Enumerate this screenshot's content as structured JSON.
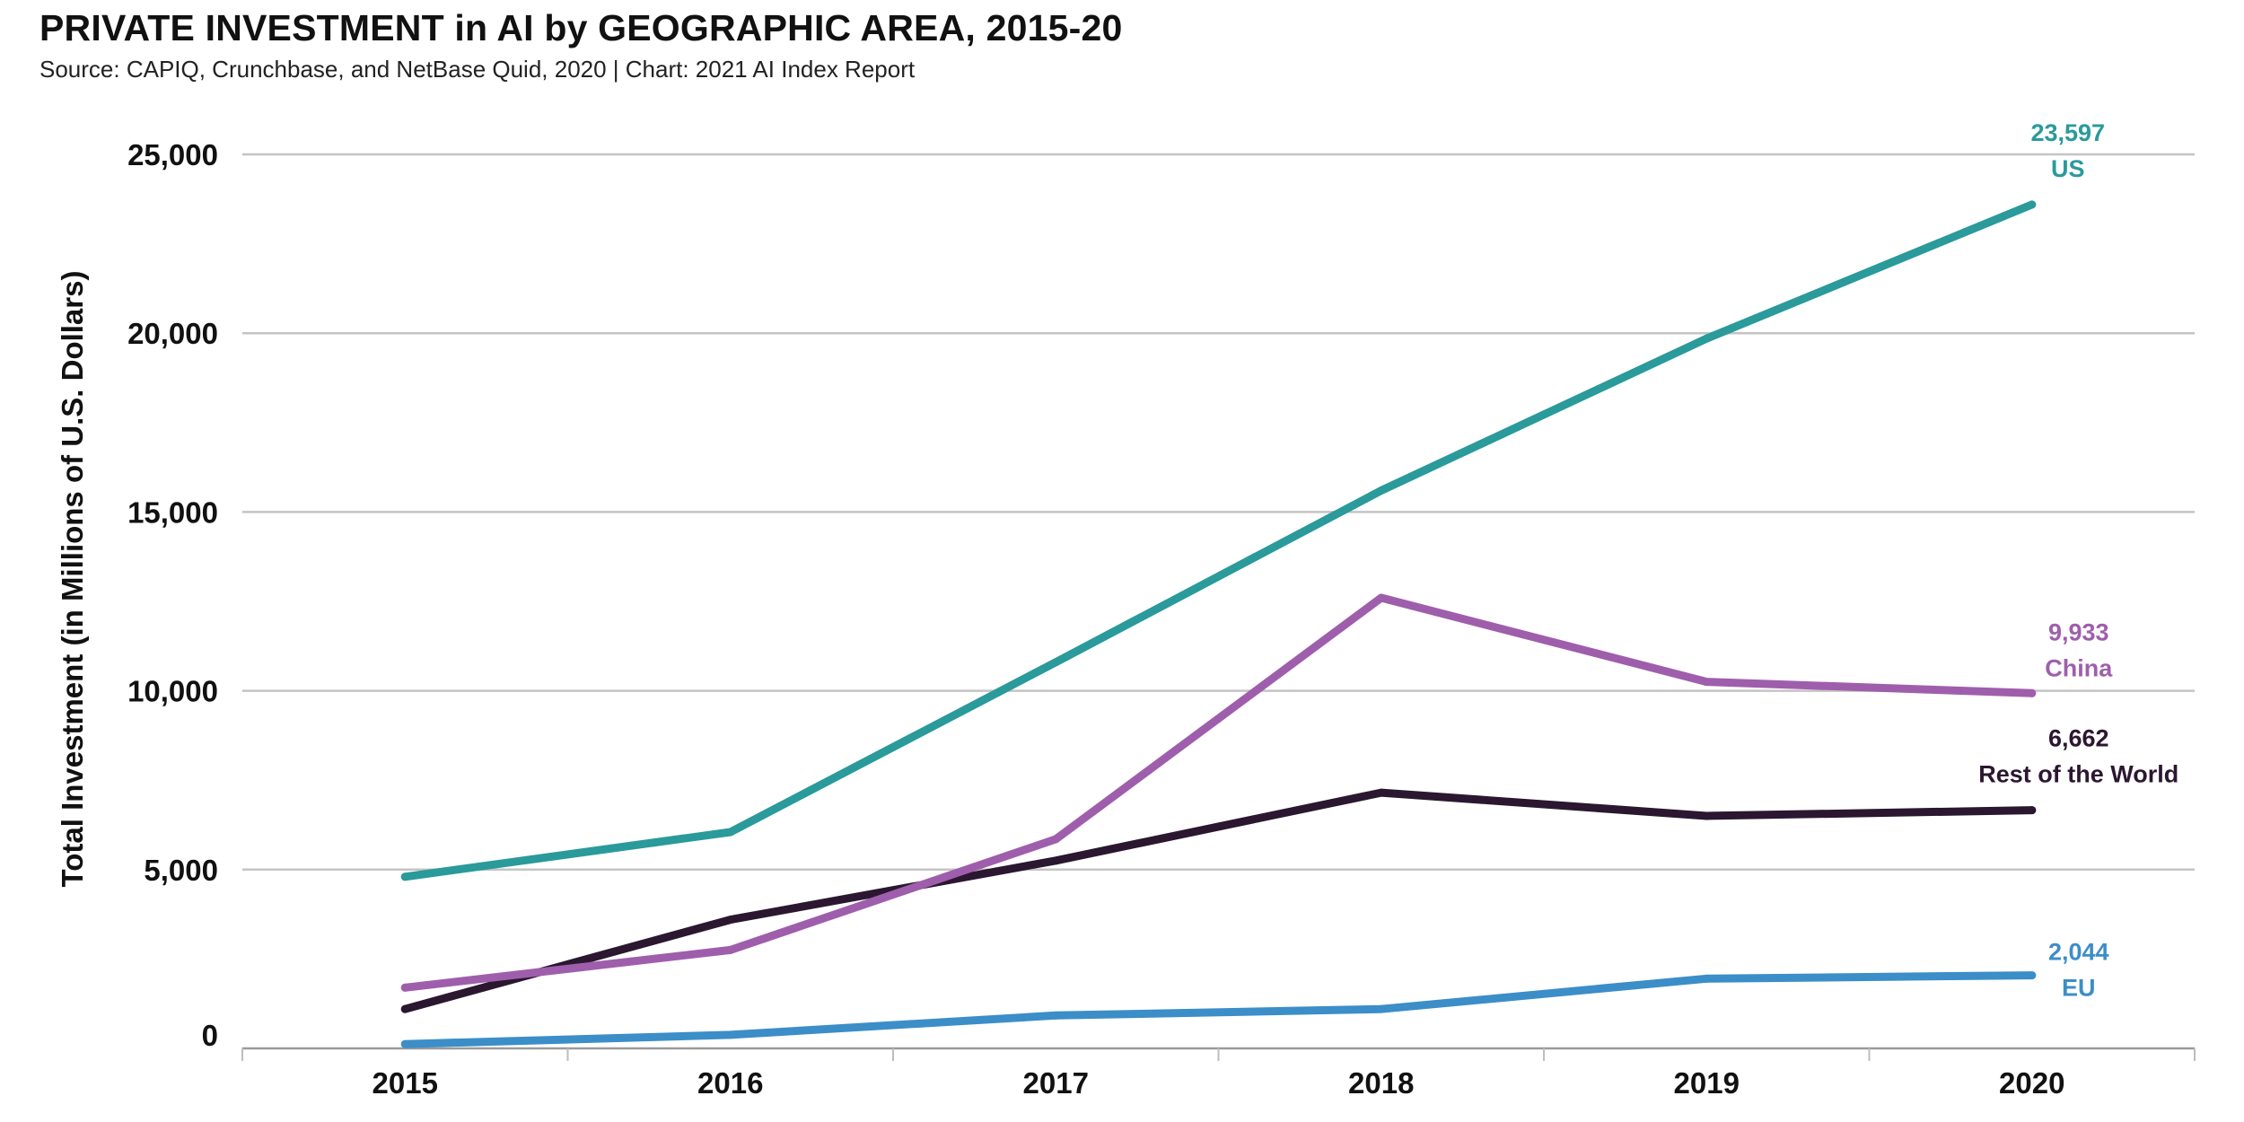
{
  "header": {
    "title": "PRIVATE INVESTMENT in AI by GEOGRAPHIC AREA, 2015-20",
    "subtitle": "Source: CAPIQ, Crunchbase, and NetBase Quid, 2020 | Chart: 2021 AI Index Report"
  },
  "chart_data": {
    "type": "line",
    "title": "PRIVATE INVESTMENT in AI by GEOGRAPHIC AREA, 2015-20",
    "subtitle": "Source: CAPIQ, Crunchbase, and NetBase Quid, 2020 | Chart: 2021 AI Index Report",
    "xlabel": "",
    "ylabel": "Total Investment (in Millions of U.S. Dollars)",
    "x": [
      2015,
      2016,
      2017,
      2018,
      2019,
      2020
    ],
    "x_tick_labels": [
      "2015",
      "2016",
      "2017",
      "2018",
      "2019",
      "2020"
    ],
    "ylim": [
      0,
      25000
    ],
    "y_ticks": [
      0,
      5000,
      10000,
      15000,
      20000,
      25000
    ],
    "y_tick_labels": [
      "0",
      "5,000",
      "10,000",
      "15,000",
      "20,000",
      "25,000"
    ],
    "grid": "horizontal",
    "legend": "end-of-line labels",
    "series": [
      {
        "name": "US",
        "color": "#2a9a9b",
        "values": [
          4800,
          6050,
          10800,
          15600,
          19850,
          23597
        ],
        "end_value_label": "23,597"
      },
      {
        "name": "China",
        "color": "#9f5eac",
        "values": [
          1700,
          2750,
          5850,
          12600,
          10250,
          9933
        ],
        "end_value_label": "9,933"
      },
      {
        "name": "Rest of the World",
        "color": "#2b1730",
        "values": [
          1100,
          3600,
          5250,
          7150,
          6500,
          6662
        ],
        "end_value_label": "6,662"
      },
      {
        "name": "EU",
        "color": "#3b8ec8",
        "values": [
          120,
          380,
          920,
          1100,
          1950,
          2044
        ],
        "end_value_label": "2,044"
      }
    ]
  }
}
